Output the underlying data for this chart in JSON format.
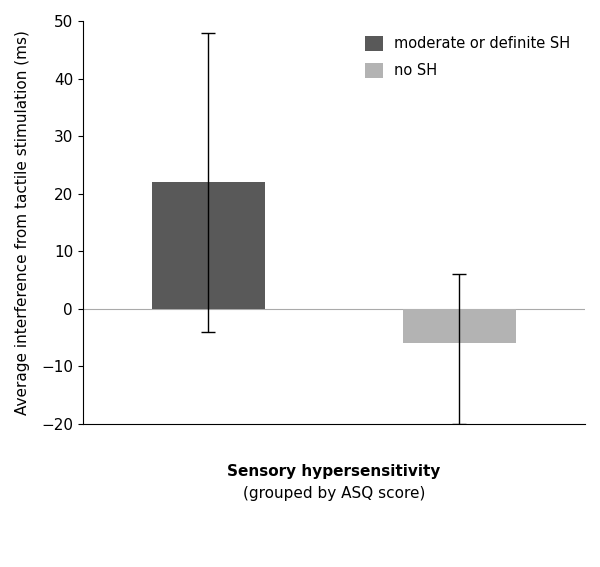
{
  "categories": [
    "moderate or definite SH",
    "no SH"
  ],
  "values": [
    22.0,
    -6.0
  ],
  "errors_plus": [
    26.0,
    12.0
  ],
  "errors_minus": [
    26.0,
    14.0
  ],
  "bar_colors": [
    "#595959",
    "#b3b3b3"
  ],
  "bar_width": 0.45,
  "ylabel": "Average interference from tactile stimulation (ms)",
  "xlabel_bold": "Sensory hypersensitivity",
  "xlabel_normal": "(grouped by ASQ score)",
  "ylim": [
    -20,
    50
  ],
  "yticks": [
    -20,
    -10,
    0,
    10,
    20,
    30,
    40,
    50
  ],
  "legend_labels": [
    "moderate or definite SH",
    "no SH"
  ],
  "legend_colors": [
    "#595959",
    "#b3b3b3"
  ],
  "background_color": "#ffffff",
  "zero_line_color": "#aaaaaa",
  "errorbar_color": "#000000",
  "errorbar_linewidth": 1.0,
  "errorbar_capsize": 5,
  "axis_fontsize": 11,
  "tick_fontsize": 11,
  "legend_fontsize": 10.5
}
